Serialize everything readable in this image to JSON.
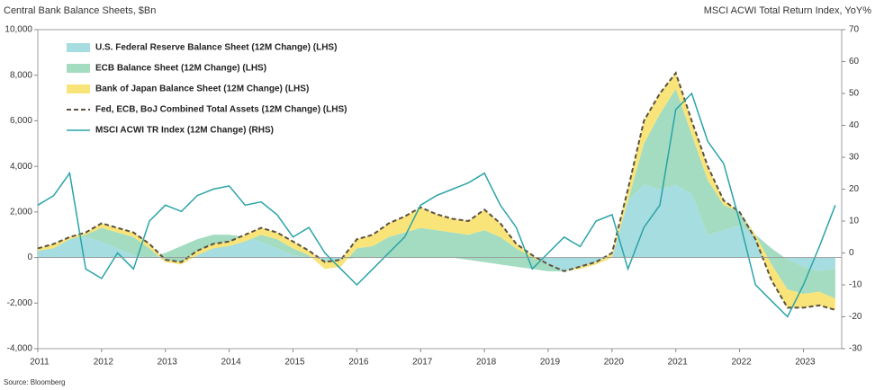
{
  "chart_data": {
    "type": "area",
    "left_axis_label": "Central Bank Balance Sheets, $Bn",
    "right_axis_label": "MSCI ACWI Total Return Index, YoY%",
    "source": "Source: Bloomberg",
    "x": [
      2011.0,
      2011.25,
      2011.5,
      2011.75,
      2012.0,
      2012.25,
      2012.5,
      2012.75,
      2013.0,
      2013.25,
      2013.5,
      2013.75,
      2014.0,
      2014.25,
      2014.5,
      2014.75,
      2015.0,
      2015.25,
      2015.5,
      2015.75,
      2016.0,
      2016.25,
      2016.5,
      2016.75,
      2017.0,
      2017.25,
      2017.5,
      2017.75,
      2018.0,
      2018.25,
      2018.5,
      2018.75,
      2019.0,
      2019.25,
      2019.5,
      2019.75,
      2020.0,
      2020.25,
      2020.5,
      2020.75,
      2021.0,
      2021.25,
      2021.5,
      2021.75,
      2022.0,
      2022.25,
      2022.5,
      2022.75,
      2023.0,
      2023.25,
      2023.5
    ],
    "xlim": [
      2011,
      2023.6
    ],
    "xticks": [
      2011,
      2012,
      2013,
      2014,
      2015,
      2016,
      2017,
      2018,
      2019,
      2020,
      2021,
      2022,
      2023
    ],
    "ylim": [
      -4000,
      10000
    ],
    "yticks": [
      {
        "value": -4000,
        "label": "-4,000"
      },
      {
        "value": -2000,
        "label": "-2,000"
      },
      0,
      {
        "value": 2000,
        "label": "2,000"
      },
      {
        "value": 4000,
        "label": "4,000"
      },
      {
        "value": 6000,
        "label": "6,000"
      },
      {
        "value": 8000,
        "label": "8,000"
      },
      {
        "value": 10000,
        "label": "10,000"
      }
    ],
    "y2lim": [
      -30,
      70
    ],
    "y2ticks": [
      -30,
      -20,
      -10,
      0,
      10,
      20,
      30,
      40,
      50,
      60,
      70
    ],
    "grid": false,
    "legend": "upper left",
    "series": [
      {
        "name": "U.S. Federal Reserve Balance Sheet (12M Change) (LHS)",
        "type": "area",
        "color": "#a6dde0",
        "values": [
          300,
          500,
          800,
          900,
          700,
          400,
          100,
          0,
          200,
          500,
          800,
          1000,
          1000,
          900,
          700,
          400,
          100,
          0,
          -100,
          -100,
          0,
          0,
          0,
          0,
          0,
          0,
          0,
          -100,
          -200,
          -300,
          -400,
          -500,
          -600,
          -600,
          -500,
          -300,
          0,
          2500,
          3200,
          3000,
          3200,
          2800,
          1000,
          1200,
          1400,
          1000,
          400,
          -100,
          -400,
          -600,
          -500
        ]
      },
      {
        "name": "ECB Balance Sheet (12M Change) (LHS)",
        "type": "area",
        "color": "#a3dcc0",
        "values": [
          0,
          -100,
          0,
          100,
          600,
          700,
          800,
          400,
          -400,
          -800,
          -700,
          -600,
          -500,
          -200,
          300,
          400,
          300,
          100,
          -400,
          -300,
          400,
          500,
          900,
          1100,
          1300,
          1200,
          1100,
          1100,
          1400,
          1200,
          800,
          500,
          300,
          0,
          0,
          0,
          0,
          0,
          1800,
          3300,
          4200,
          2600,
          2400,
          1100,
          600,
          0,
          -700,
          -1300,
          -1200,
          -900,
          -1300
        ]
      },
      {
        "name": "Bank of Japan Balance Sheet (12M Change) (LHS)",
        "type": "area",
        "color": "#f9e47a",
        "values": [
          100,
          200,
          100,
          100,
          200,
          200,
          200,
          200,
          100,
          100,
          200,
          200,
          200,
          300,
          300,
          300,
          300,
          200,
          300,
          300,
          400,
          500,
          600,
          700,
          900,
          700,
          600,
          600,
          900,
          600,
          200,
          100,
          0,
          0,
          100,
          100,
          200,
          500,
          1000,
          900,
          700,
          600,
          600,
          200,
          0,
          -200,
          -700,
          -800,
          -600,
          -600,
          -500
        ]
      },
      {
        "name": "Fed, ECB, BoJ Combined Total Assets (12M Change) (LHS)",
        "type": "line",
        "dashed": true,
        "color": "#5b5140",
        "values": [
          400,
          600,
          900,
          1100,
          1500,
          1300,
          1100,
          600,
          -100,
          -200,
          300,
          600,
          700,
          1000,
          1300,
          1100,
          700,
          300,
          -200,
          -100,
          800,
          1000,
          1500,
          1800,
          2200,
          1900,
          1700,
          1600,
          2100,
          1500,
          600,
          100,
          -300,
          -600,
          -400,
          -200,
          200,
          3000,
          6000,
          7200,
          8100,
          6000,
          4000,
          2500,
          2000,
          800,
          -1000,
          -2200,
          -2200,
          -2100,
          -2300
        ]
      },
      {
        "name": "MSCI ACWI TR Index (12M Change) (RHS)",
        "type": "line",
        "axis": "y2",
        "color": "#2aa3a7",
        "values": [
          15,
          18,
          25,
          -5,
          -8,
          0,
          -5,
          10,
          15,
          13,
          18,
          20,
          21,
          15,
          16,
          12,
          5,
          8,
          0,
          -5,
          -10,
          -5,
          0,
          5,
          15,
          18,
          20,
          22,
          25,
          15,
          8,
          -5,
          0,
          5,
          2,
          10,
          12,
          -5,
          8,
          15,
          45,
          50,
          35,
          28,
          10,
          -10,
          -15,
          -20,
          -10,
          2,
          15
        ]
      }
    ]
  }
}
